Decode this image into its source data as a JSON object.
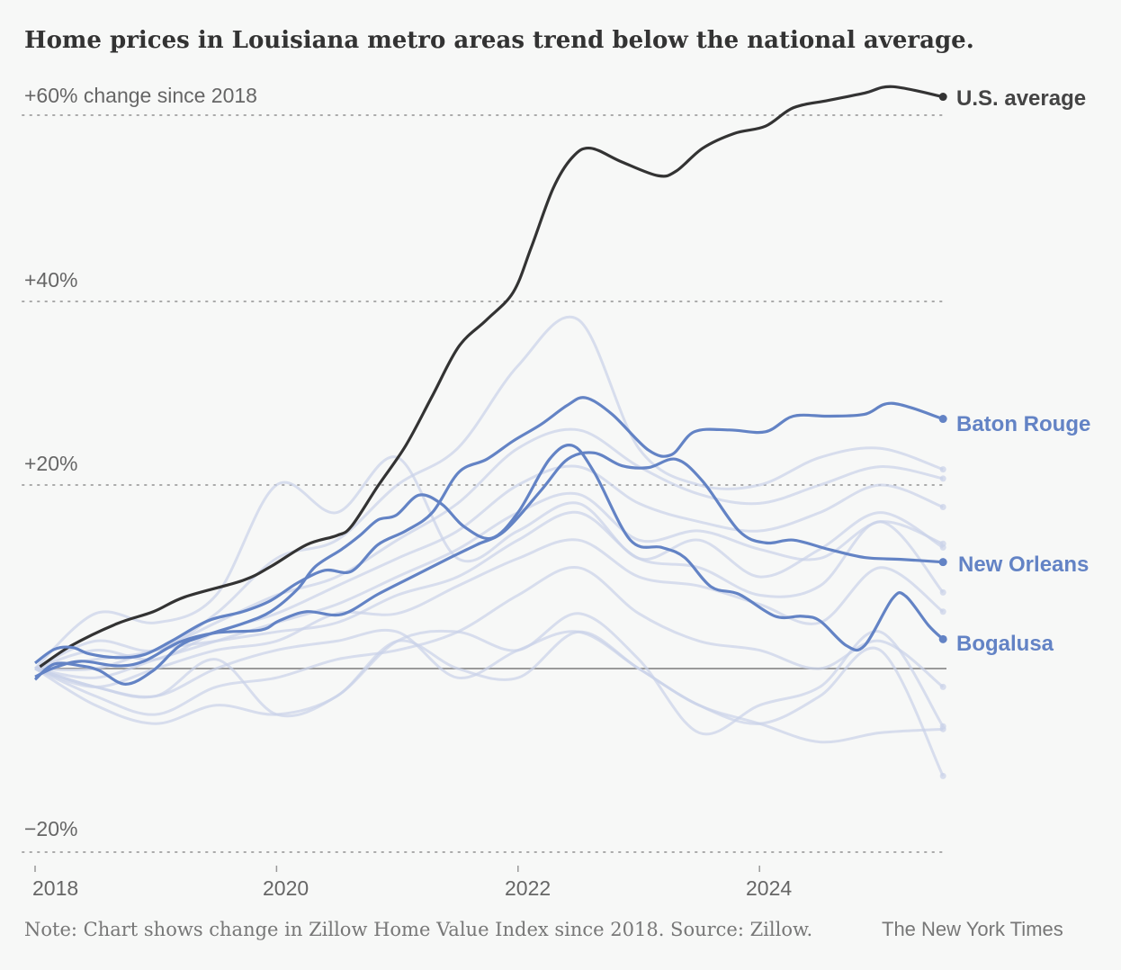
{
  "chart_data": {
    "type": "line",
    "title": "Home prices in Louisiana metro areas trend below the national average.",
    "ylabel": "+60% change since 2018",
    "ylim": [
      -20,
      60
    ],
    "xlim": [
      2018,
      2025.52
    ],
    "yticks": [
      {
        "value": 60,
        "label": "+60% change since 2018"
      },
      {
        "value": 40,
        "label": "+40%"
      },
      {
        "value": 20,
        "label": "+20%"
      },
      {
        "value": -20,
        "label": "−20%"
      }
    ],
    "xticks": [
      {
        "value": 2018,
        "label": "2018"
      },
      {
        "value": 2020,
        "label": "2020"
      },
      {
        "value": 2022,
        "label": "2022"
      },
      {
        "value": 2024,
        "label": "2024"
      }
    ],
    "grid": true,
    "highlighted_series": [
      {
        "name": "U.S. average",
        "color": "#333333",
        "x": [
          2018.04,
          2018.3,
          2018.68,
          2018.98,
          2019.24,
          2019.72,
          2019.95,
          2020.25,
          2020.5,
          2020.62,
          2020.84,
          2021.07,
          2021.29,
          2021.51,
          2021.74,
          2021.96,
          2022.11,
          2022.29,
          2022.45,
          2022.6,
          2022.86,
          2023.16,
          2023.31,
          2023.53,
          2023.79,
          2024.05,
          2024.28,
          2024.57,
          2024.87,
          2025.1,
          2025.52
        ],
        "y": [
          0.2,
          2.5,
          4.9,
          6.2,
          7.8,
          9.6,
          11.1,
          13.5,
          14.5,
          15.5,
          19.9,
          24.3,
          29.7,
          35.1,
          38.0,
          41.0,
          45.9,
          52.3,
          55.7,
          56.7,
          55.2,
          53.7,
          54.2,
          56.7,
          58.3,
          59.1,
          61.1,
          61.9,
          62.7,
          63.4,
          62.3
        ]
      },
      {
        "name": "Baton Rouge",
        "color": "#6383c5",
        "x": [
          2018,
          2018.16,
          2018.31,
          2018.45,
          2018.68,
          2018.9,
          2019.13,
          2019.43,
          2019.72,
          2019.95,
          2020.17,
          2020.4,
          2020.62,
          2020.84,
          2021.07,
          2021.29,
          2021.51,
          2021.74,
          2021.96,
          2022.19,
          2022.41,
          2022.56,
          2022.78,
          2023.08,
          2023.27,
          2023.46,
          2023.75,
          2024.05,
          2024.28,
          2024.57,
          2024.87,
          2025.1,
          2025.52
        ],
        "y": [
          0.6,
          2.1,
          2.3,
          1.6,
          1.2,
          1.5,
          3.0,
          5.2,
          6.2,
          7.4,
          9.3,
          10.7,
          10.6,
          13.5,
          15.0,
          17.0,
          21.4,
          22.8,
          24.8,
          26.6,
          28.7,
          29.5,
          27.7,
          23.8,
          23.3,
          25.8,
          26.0,
          25.8,
          27.5,
          27.5,
          27.7,
          28.9,
          27.2
        ]
      },
      {
        "name": "New Orleans",
        "color": "#6383c5",
        "x": [
          2018,
          2018.16,
          2018.38,
          2018.68,
          2018.9,
          2019.2,
          2019.5,
          2019.87,
          2020.02,
          2020.25,
          2020.54,
          2020.84,
          2021.14,
          2021.44,
          2021.66,
          2021.89,
          2022.19,
          2022.41,
          2022.63,
          2022.86,
          2023.08,
          2023.31,
          2023.53,
          2023.83,
          2024.05,
          2024.28,
          2024.57,
          2024.87,
          2025.17,
          2025.52
        ],
        "y": [
          -0.9,
          0.1,
          0.8,
          0.3,
          0.8,
          2.9,
          3.9,
          4.2,
          5.2,
          6.2,
          5.9,
          8.1,
          10.1,
          12.1,
          13.5,
          15.0,
          19.4,
          22.8,
          23.5,
          22.1,
          21.9,
          22.8,
          20.4,
          15.0,
          13.7,
          14.0,
          13.0,
          12.1,
          11.9,
          11.6
        ]
      },
      {
        "name": "Bogalusa",
        "color": "#6383c5",
        "x": [
          2018,
          2018.16,
          2018.38,
          2018.53,
          2018.75,
          2018.98,
          2019.2,
          2019.43,
          2019.72,
          2019.95,
          2020.17,
          2020.32,
          2020.54,
          2020.69,
          2020.84,
          2020.99,
          2021.18,
          2021.37,
          2021.55,
          2021.78,
          2022.0,
          2022.26,
          2022.45,
          2022.63,
          2022.93,
          2023.19,
          2023.38,
          2023.6,
          2023.83,
          2024.13,
          2024.35,
          2024.5,
          2024.72,
          2024.87,
          2025.1,
          2025.21,
          2025.4,
          2025.52
        ],
        "y": [
          -1.2,
          0.5,
          0.3,
          -0.2,
          -1.7,
          -0.2,
          2.5,
          3.7,
          4.9,
          6.2,
          8.6,
          11.1,
          13.0,
          14.5,
          16.2,
          16.7,
          18.9,
          17.9,
          15.5,
          14.2,
          17.0,
          22.8,
          24.3,
          21.4,
          14.0,
          13.2,
          12.1,
          8.9,
          8.1,
          5.7,
          5.7,
          5.2,
          2.5,
          2.5,
          7.6,
          7.9,
          4.7,
          3.2
        ]
      }
    ],
    "background_series": {
      "color": "#c9d2e8",
      "x": [
        2018,
        2018.5,
        2019,
        2019.5,
        2020,
        2020.5,
        2021,
        2021.5,
        2022,
        2022.5,
        2023,
        2023.5,
        2024,
        2024.5,
        2025,
        2025.52
      ],
      "series": [
        [
          0,
          3,
          2,
          6,
          12,
          14,
          20,
          24,
          33,
          38,
          24,
          20,
          20,
          23,
          24,
          21.7
        ],
        [
          0,
          1,
          2,
          5,
          8,
          10,
          14,
          18,
          24,
          26,
          22,
          19,
          18,
          20,
          22,
          20.7
        ],
        [
          0,
          2,
          1,
          4,
          6,
          9,
          12,
          15,
          20,
          22,
          18,
          16,
          15,
          17,
          20,
          17.6
        ],
        [
          0,
          -1,
          1,
          3,
          5,
          7,
          10,
          13,
          17,
          19,
          14,
          15,
          13,
          12,
          16,
          13.6
        ],
        [
          0,
          6,
          5,
          8,
          20,
          17,
          23,
          12,
          15,
          18,
          12,
          14,
          10,
          13,
          17,
          13.2
        ],
        [
          0,
          0,
          2,
          3,
          4,
          5,
          8,
          10,
          14,
          17,
          12,
          11,
          8,
          9,
          16,
          8.3
        ],
        [
          0,
          -2,
          0,
          2,
          3,
          6,
          6,
          9,
          12,
          14,
          10,
          9,
          7,
          5,
          11,
          6.2
        ],
        [
          0,
          -3,
          -5,
          -2,
          -1,
          1,
          2,
          4,
          8,
          11,
          6,
          3,
          2,
          0,
          3,
          -2.0
        ],
        [
          0,
          -2,
          -3,
          1,
          -5,
          -3,
          3,
          4,
          2,
          6,
          1,
          -7,
          -4,
          -2,
          4,
          -6.3
        ],
        [
          0,
          -4,
          -6,
          -4,
          -5,
          -3,
          3,
          0,
          -1,
          4,
          0,
          -4,
          -6,
          -8,
          -7,
          -6.6
        ],
        [
          0,
          -2,
          -3,
          0,
          2,
          3,
          4,
          -1,
          2,
          4,
          0,
          -4,
          -6,
          -3,
          2,
          -11.7
        ]
      ]
    },
    "labels": {
      "us": "U.S. average",
      "baton_rouge": "Baton Rouge",
      "new_orleans": "New Orleans",
      "bogalusa": "Bogalusa"
    },
    "note": "Note: Chart shows change in Zillow Home Value Index since 2018. Source: Zillow.",
    "credit": "The New York Times"
  }
}
